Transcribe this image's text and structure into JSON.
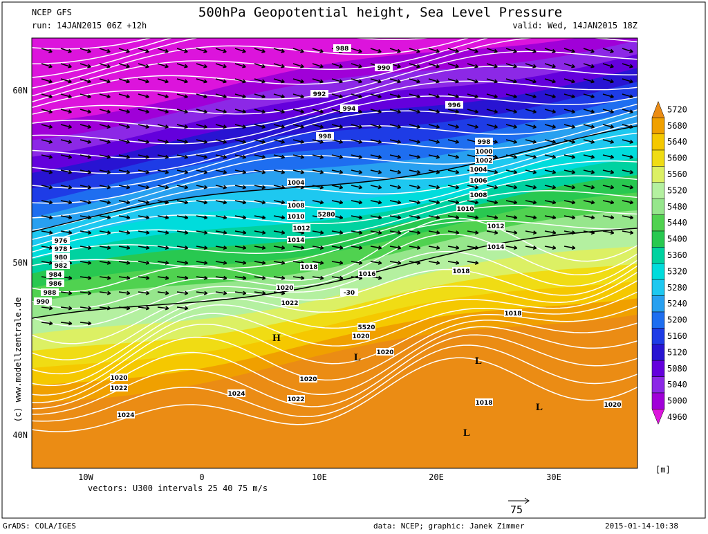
{
  "header": {
    "model": "NCEP GFS",
    "run": "run: 14JAN2015 06Z +12h",
    "title": "500hPa Geopotential height, Sea Level Pressure",
    "valid": "valid: Wed, 14JAN2015 18Z"
  },
  "map": {
    "lat_labels": [
      "60N",
      "50N",
      "40N"
    ],
    "lon_labels": [
      "10W",
      "0",
      "10E",
      "20E",
      "30E"
    ],
    "pressure_labels": [
      988,
      990,
      992,
      994,
      996,
      998,
      998,
      1000,
      1002,
      1004,
      1006,
      1004,
      1008,
      1008,
      1010,
      1010,
      5280,
      1012,
      1012,
      1014,
      1014,
      976,
      978,
      980,
      982,
      984,
      986,
      988,
      990,
      1018,
      1016,
      1018,
      1020,
      1022,
      -30,
      1018,
      5520,
      1020,
      1020,
      1020,
      1022,
      1020,
      1024,
      1022,
      1018,
      1020,
      1024
    ],
    "pressure_centers": [
      "H",
      "L",
      "L",
      "L",
      "L"
    ],
    "credit": "(c) www.modellzentrale.de",
    "vector_note": "vectors: U300 intervals 25 40 75 m/s",
    "reference_vector": "75"
  },
  "legend": {
    "levels": [
      4960,
      5000,
      5040,
      5080,
      5120,
      5160,
      5200,
      5240,
      5280,
      5320,
      5360,
      5400,
      5440,
      5480,
      5520,
      5560,
      5600,
      5640,
      5680,
      5720
    ],
    "colors": [
      "#dc14dc",
      "#a000d8",
      "#8c28e6",
      "#6400dc",
      "#2814d2",
      "#1e3ce6",
      "#1e6ef0",
      "#28a0f0",
      "#1ec8f0",
      "#00dcdc",
      "#00d2a0",
      "#28c850",
      "#50d250",
      "#96e68c",
      "#b4f0a0",
      "#dcf064",
      "#f0dc14",
      "#f5c800",
      "#f0a000",
      "#eb8c14"
    ],
    "unit": "[m]"
  },
  "footer": {
    "software": "GrADS: COLA/IGES",
    "source": "data: NCEP; graphic: Janek Zimmer",
    "timestamp": "2015-01-14-10:38"
  }
}
